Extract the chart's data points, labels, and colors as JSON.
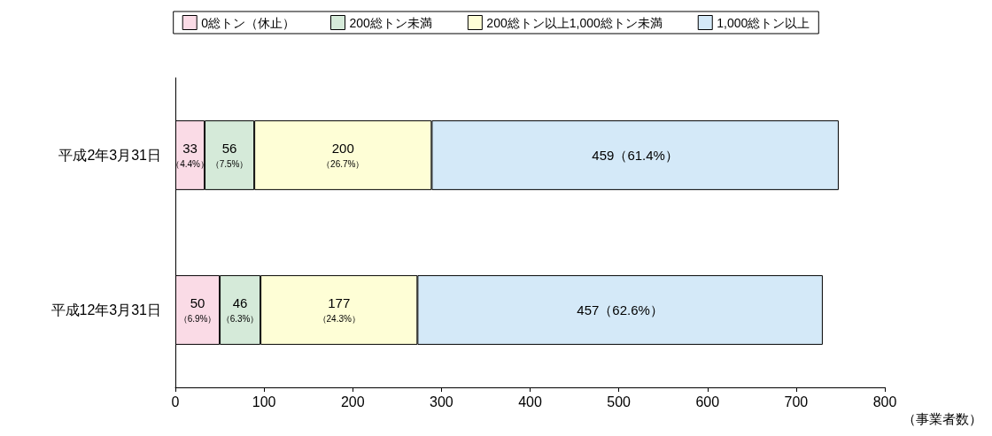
{
  "chart_data": {
    "type": "bar",
    "orientation": "horizontal",
    "stacked": true,
    "categories": [
      "平成2年3月31日",
      "平成12年3月31日"
    ],
    "series": [
      {
        "name": "0総トン（休止）",
        "color": "#fadbe6",
        "values": [
          33,
          50
        ],
        "value_labels": [
          "33\n（4.4%）",
          "50\n（6.9%）"
        ]
      },
      {
        "name": "200総トン未満",
        "color": "#d5ead9",
        "values": [
          56,
          46
        ],
        "value_labels": [
          "56\n（7.5%）",
          "46\n（6.3%）"
        ]
      },
      {
        "name": "200総トン以上1,000総トン未満",
        "color": "#fefed6",
        "values": [
          200,
          177
        ],
        "value_labels": [
          "200\n（26.7%）",
          "177\n（24.3%）"
        ]
      },
      {
        "name": "1,000総トン以上",
        "color": "#d4e9f8",
        "values": [
          459,
          457
        ],
        "value_labels": [
          "459（61.4%）",
          "457（62.6%）"
        ]
      }
    ],
    "xlabel": "（事業者数）",
    "xlim": [
      0,
      800
    ],
    "xticks": [
      0,
      100,
      200,
      300,
      400,
      500,
      600,
      700,
      800
    ],
    "grid": false,
    "legend": "top"
  }
}
